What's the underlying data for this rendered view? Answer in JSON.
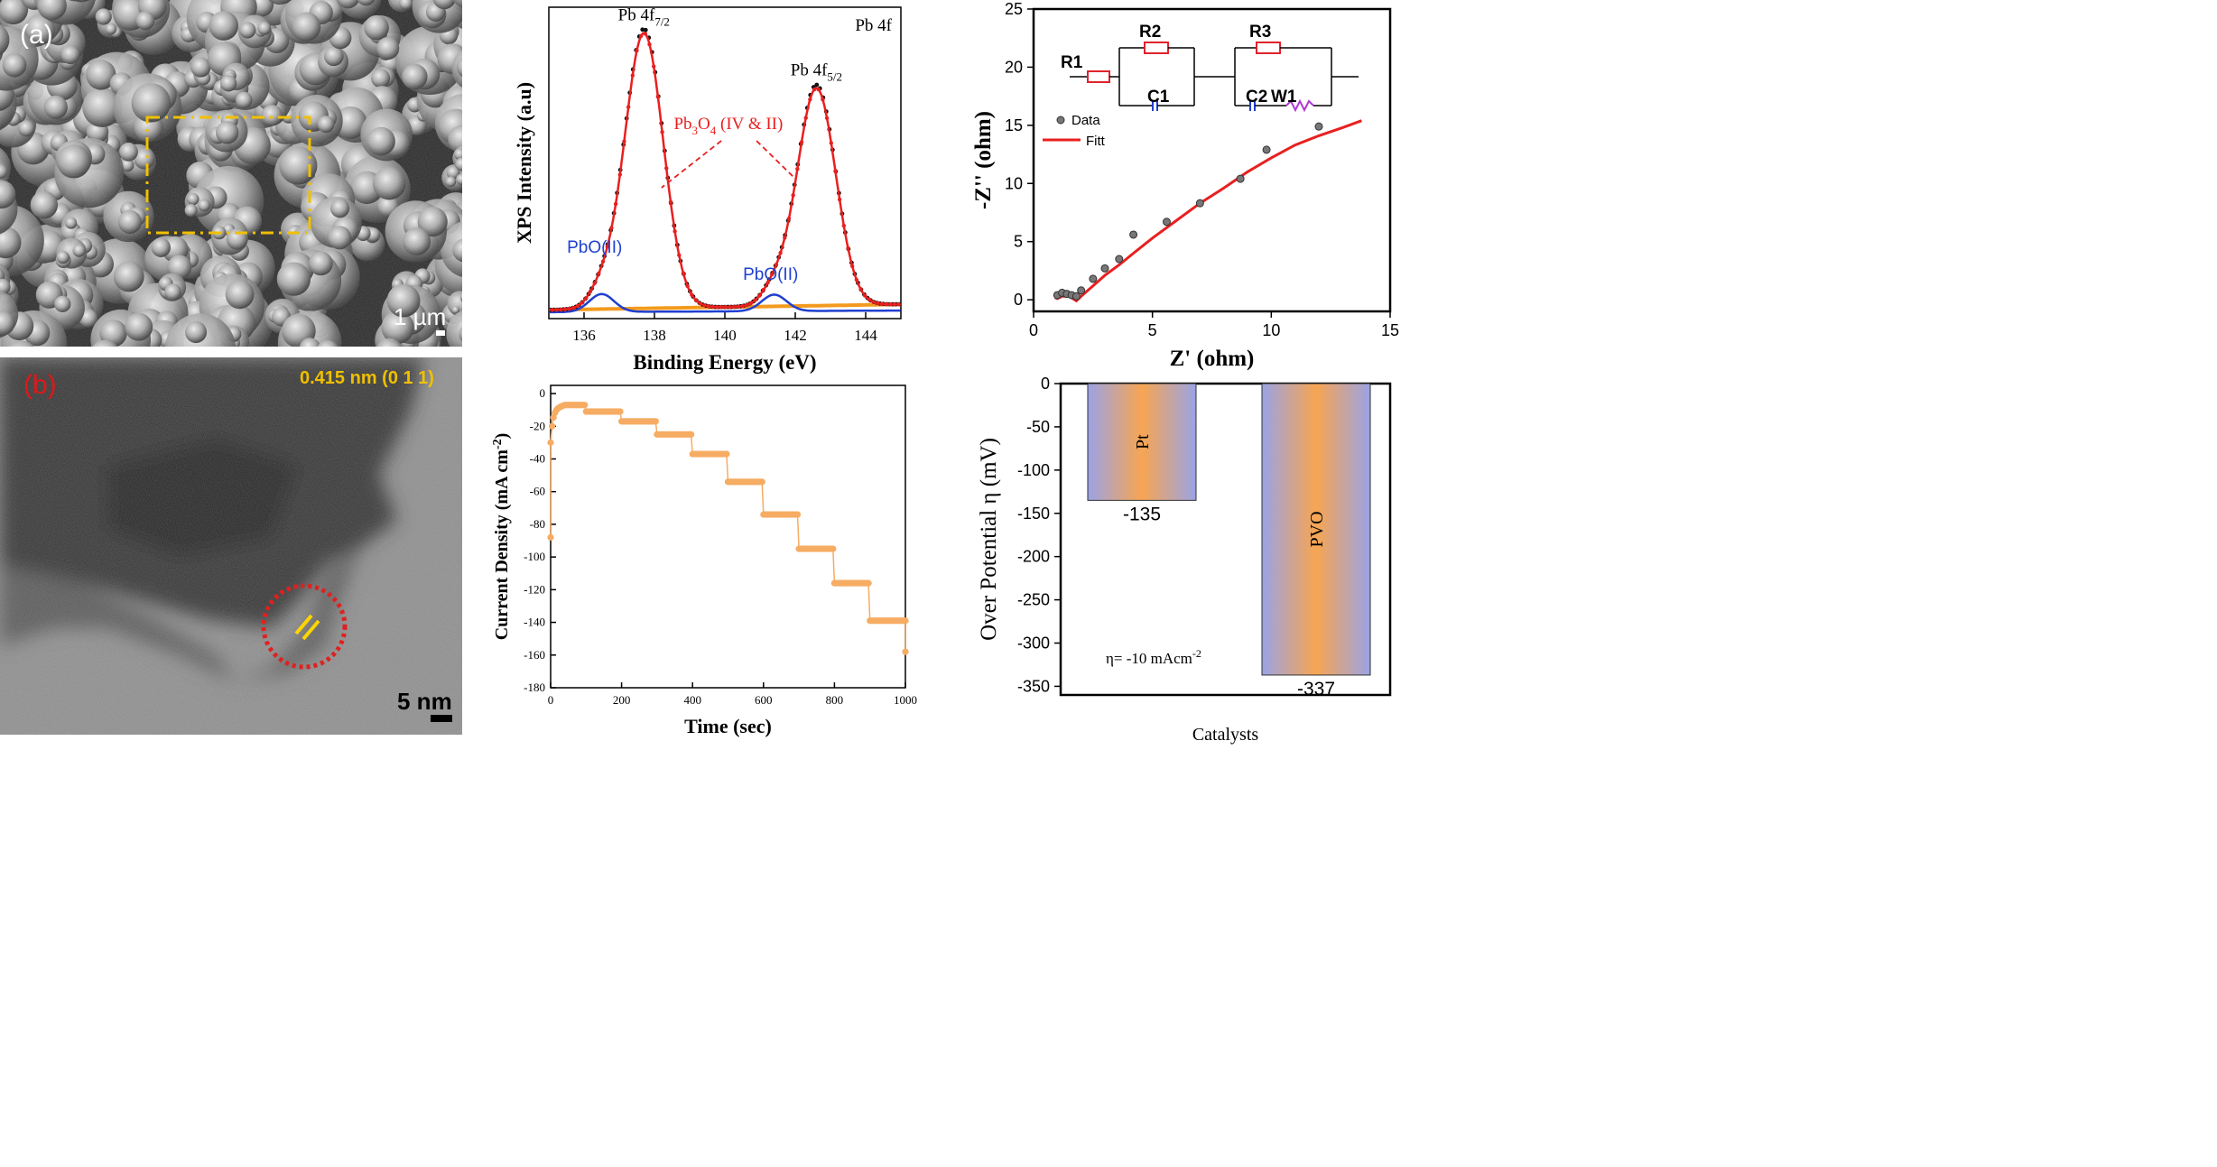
{
  "panel_a": {
    "label": "(a)",
    "scale_bar": "1 µm"
  },
  "panel_b": {
    "label": "(b)",
    "d_spacing": "0.415 nm (0 1 1)",
    "scale_bar": "5 nm"
  },
  "colors": {
    "xps_black": "#111111",
    "xps_red": "#e8201f",
    "xps_blue": "#1f3fd0",
    "xps_orange": "#f39a1e",
    "eis_fit": "#e8201f",
    "chrono": "#f6ac63",
    "bar_edge": "#9aa3e6",
    "bar_center": "#f7a552",
    "highlight_box": "#f0c000",
    "circle": "#e02020",
    "fringe": "#ffd500",
    "resistor": "#e0232c",
    "capacitor": "#1f3fd0",
    "warburg": "#b13ad3"
  },
  "chart_data": [
    {
      "id": "xps",
      "type": "line",
      "title": "Pb 4f",
      "xlabel": "Binding Energy (eV)",
      "ylabel": "XPS Intensity (a.u)",
      "xlim": [
        135,
        145
      ],
      "xticks": [
        "136",
        "138",
        "140",
        "142",
        "144"
      ],
      "y_ticks_shown": false,
      "peaks": [
        {
          "name": "Pb 4f7/2",
          "label_main": "Pb 4f",
          "label_sub": "7/2",
          "position_ev": 137.7,
          "height": 1.0,
          "width": 0.55
        },
        {
          "name": "Pb 4f5/2",
          "label_main": "Pb 4f",
          "label_sub": "5/2",
          "position_ev": 142.6,
          "height": 0.79,
          "width": 0.55
        }
      ],
      "components": [
        {
          "name": "PbO(II)",
          "position_ev": 136.5,
          "height": 0.065,
          "width": 0.35
        },
        {
          "name": "PbO(II)",
          "position_ev": 141.4,
          "height": 0.06,
          "width": 0.35
        }
      ],
      "annotations": {
        "pb3o4_main": "Pb",
        "pb3o4_sub1": "3",
        "pb3o4_mid": "O",
        "pb3o4_sub2": "4",
        "pb3o4_rest": " (IV & II)",
        "pbo_left": "PbO(II)",
        "pbo_right": "PbO(II)"
      }
    },
    {
      "id": "eis",
      "type": "scatter",
      "xlabel": "Z' (ohm)",
      "ylabel": "-Z'' (ohm)",
      "xlim": [
        0,
        15
      ],
      "ylim": [
        -1,
        25
      ],
      "xticks": [
        0,
        5,
        10,
        15
      ],
      "yticks": [
        0,
        5,
        10,
        15,
        20,
        25
      ],
      "legend": [
        "Data",
        "Fitt"
      ],
      "legend_position": "upper-left",
      "data": [
        [
          1.0,
          0.4
        ],
        [
          1.2,
          0.6
        ],
        [
          1.4,
          0.5
        ],
        [
          1.6,
          0.4
        ],
        [
          1.8,
          0.3
        ],
        [
          2.0,
          0.8
        ],
        [
          2.5,
          1.8
        ],
        [
          3.0,
          2.7
        ],
        [
          3.6,
          3.5
        ],
        [
          4.2,
          5.6
        ],
        [
          5.6,
          6.7
        ],
        [
          7.0,
          8.3
        ],
        [
          8.7,
          10.4
        ],
        [
          9.8,
          12.9
        ],
        [
          12.0,
          14.9
        ]
      ],
      "fit": [
        [
          0.9,
          0.2
        ],
        [
          1.0,
          0.1
        ],
        [
          1.2,
          0.3
        ],
        [
          1.5,
          0.3
        ],
        [
          1.8,
          -0.1
        ],
        [
          2.0,
          0.3
        ],
        [
          2.5,
          1.2
        ],
        [
          3.0,
          2.1
        ],
        [
          3.6,
          3.0
        ],
        [
          4.2,
          4.0
        ],
        [
          5.0,
          5.3
        ],
        [
          6.0,
          6.8
        ],
        [
          7.0,
          8.3
        ],
        [
          8.0,
          9.6
        ],
        [
          9.0,
          11.0
        ],
        [
          10.0,
          12.2
        ],
        [
          11.0,
          13.3
        ],
        [
          12.0,
          14.1
        ],
        [
          13.0,
          14.8
        ],
        [
          13.8,
          15.4
        ]
      ],
      "circuit": {
        "labels": [
          "R1",
          "R2",
          "C1",
          "R3",
          "C2",
          "W1"
        ]
      }
    },
    {
      "id": "chrono",
      "type": "scatter",
      "xlabel": "Time (sec)",
      "ylabel": "Current Density (mA cm",
      "ylabel_sup": "-2",
      "ylabel_end": ")",
      "xlim": [
        0,
        1000
      ],
      "ylim": [
        -180,
        5
      ],
      "xticks": [
        0,
        200,
        400,
        600,
        800,
        1000
      ],
      "yticks": [
        0,
        -20,
        -40,
        -60,
        -80,
        -100,
        -120,
        -140,
        -160,
        -180
      ],
      "steps": [
        {
          "t0": 0,
          "t1": 100,
          "j": -7
        },
        {
          "t0": 100,
          "t1": 200,
          "j": -11
        },
        {
          "t0": 200,
          "t1": 300,
          "j": -17
        },
        {
          "t0": 300,
          "t1": 400,
          "j": -25
        },
        {
          "t0": 400,
          "t1": 500,
          "j": -37
        },
        {
          "t0": 500,
          "t1": 600,
          "j": -54
        },
        {
          "t0": 600,
          "t1": 700,
          "j": -74
        },
        {
          "t0": 700,
          "t1": 800,
          "j": -95
        },
        {
          "t0": 800,
          "t1": 900,
          "j": -116
        },
        {
          "t0": 900,
          "t1": 1000,
          "j": -139
        }
      ],
      "end_point": {
        "t": 1000,
        "j": -158
      },
      "start_point": {
        "t": 0,
        "j": -88
      }
    },
    {
      "id": "overpotential",
      "type": "bar",
      "categories": [
        "Pt",
        "PVO"
      ],
      "values": [
        -135,
        -337
      ],
      "value_labels": [
        "-135",
        "-337"
      ],
      "xlabel": "Catalysts",
      "ylabel": "Over Potential η (mV)",
      "ylim": [
        -360,
        0
      ],
      "yticks": [
        0,
        -50,
        -100,
        -150,
        -200,
        -250,
        -300,
        -350
      ],
      "annotation_main": "η= -10 mAcm",
      "annotation_sup": "-2"
    }
  ]
}
